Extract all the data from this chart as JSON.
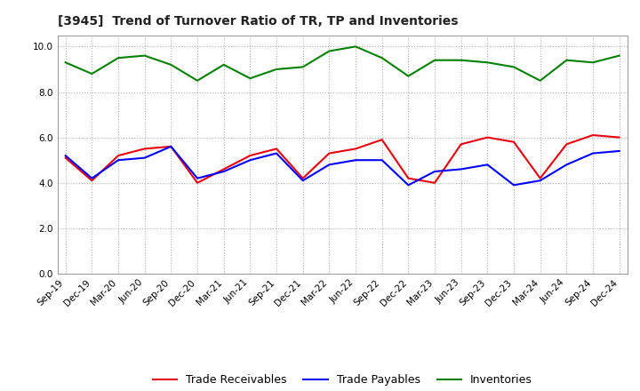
{
  "title": "[3945]  Trend of Turnover Ratio of TR, TP and Inventories",
  "labels": [
    "Sep-19",
    "Dec-19",
    "Mar-20",
    "Jun-20",
    "Sep-20",
    "Dec-20",
    "Mar-21",
    "Jun-21",
    "Sep-21",
    "Dec-21",
    "Mar-22",
    "Jun-22",
    "Sep-22",
    "Dec-22",
    "Mar-23",
    "Jun-23",
    "Sep-23",
    "Dec-23",
    "Mar-24",
    "Jun-24",
    "Sep-24",
    "Dec-24"
  ],
  "trade_receivables": [
    5.1,
    4.1,
    5.2,
    5.5,
    5.6,
    4.0,
    4.6,
    5.2,
    5.5,
    4.2,
    5.3,
    5.5,
    5.9,
    4.2,
    4.0,
    5.7,
    6.0,
    5.8,
    4.2,
    5.7,
    6.1,
    6.0
  ],
  "trade_payables": [
    5.2,
    4.2,
    5.0,
    5.1,
    5.6,
    4.2,
    4.5,
    5.0,
    5.3,
    4.1,
    4.8,
    5.0,
    5.0,
    3.9,
    4.5,
    4.6,
    4.8,
    3.9,
    4.1,
    4.8,
    5.3,
    5.4
  ],
  "inventories": [
    9.3,
    8.8,
    9.5,
    9.6,
    9.2,
    8.5,
    9.2,
    8.6,
    9.0,
    9.1,
    9.8,
    10.0,
    9.5,
    8.7,
    9.4,
    9.4,
    9.3,
    9.1,
    8.5,
    9.4,
    9.3,
    9.6
  ],
  "tr_color": "#e8000d",
  "tp_color": "#0000ff",
  "inv_color": "#008000",
  "ylim": [
    0.0,
    10.5
  ],
  "yticks": [
    0.0,
    2.0,
    4.0,
    6.0,
    8.0,
    10.0
  ],
  "background_color": "#ffffff",
  "grid_color": "#b0b0b0",
  "legend_labels": [
    "Trade Receivables",
    "Trade Payables",
    "Inventories"
  ]
}
